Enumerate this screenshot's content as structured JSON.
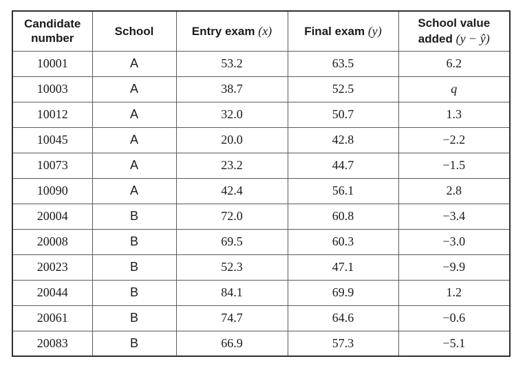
{
  "table": {
    "headers": [
      {
        "label": "Candidate number",
        "math": ""
      },
      {
        "label": "School",
        "math": ""
      },
      {
        "label": "Entry exam",
        "math": "(x)"
      },
      {
        "label": "Final exam",
        "math": "(y)"
      },
      {
        "label": "School value added",
        "math": "(y − ŷ)"
      }
    ],
    "math_values": [
      "q"
    ],
    "rows": [
      [
        "10001",
        "A",
        "53.2",
        "63.5",
        "6.2"
      ],
      [
        "10003",
        "A",
        "38.7",
        "52.5",
        "q"
      ],
      [
        "10012",
        "A",
        "32.0",
        "50.7",
        "1.3"
      ],
      [
        "10045",
        "A",
        "20.0",
        "42.8",
        "−2.2"
      ],
      [
        "10073",
        "A",
        "23.2",
        "44.7",
        "−1.5"
      ],
      [
        "10090",
        "A",
        "42.4",
        "56.1",
        "2.8"
      ],
      [
        "20004",
        "B",
        "72.0",
        "60.8",
        "−3.4"
      ],
      [
        "20008",
        "B",
        "69.5",
        "60.3",
        "−3.0"
      ],
      [
        "20023",
        "B",
        "52.3",
        "47.1",
        "−9.9"
      ],
      [
        "20044",
        "B",
        "84.1",
        "69.9",
        "1.2"
      ],
      [
        "20061",
        "B",
        "74.7",
        "64.6",
        "−0.6"
      ],
      [
        "20083",
        "B",
        "66.9",
        "57.3",
        "−5.1"
      ]
    ],
    "colors": {
      "border_outer": "#2e2e2e",
      "border_inner": "#5a5a5a",
      "text": "#1a1a1a",
      "background": "#ffffff"
    }
  }
}
